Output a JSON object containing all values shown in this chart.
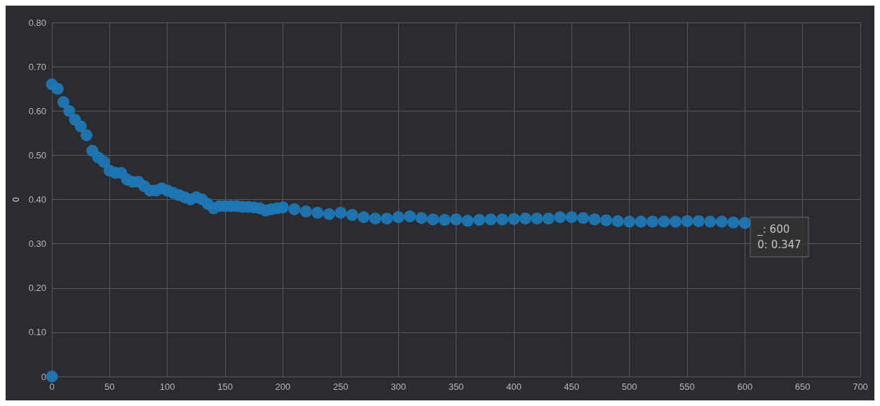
{
  "chart_data": {
    "type": "scatter",
    "ylabel": "0",
    "color": "#1f77b4",
    "marker": "circle",
    "grid": true,
    "x": [
      0,
      0,
      5,
      10,
      15,
      20,
      25,
      30,
      35,
      40,
      45,
      50,
      55,
      60,
      65,
      70,
      75,
      80,
      85,
      90,
      95,
      100,
      105,
      110,
      115,
      120,
      125,
      130,
      135,
      140,
      145,
      150,
      155,
      160,
      165,
      170,
      175,
      180,
      185,
      190,
      195,
      200,
      210,
      220,
      230,
      240,
      250,
      260,
      270,
      280,
      290,
      300,
      310,
      320,
      330,
      340,
      350,
      360,
      370,
      380,
      390,
      400,
      410,
      420,
      430,
      440,
      450,
      460,
      470,
      480,
      490,
      500,
      510,
      520,
      530,
      540,
      550,
      560,
      570,
      580,
      590,
      600
    ],
    "values": [
      0,
      0.66,
      0.65,
      0.62,
      0.6,
      0.58,
      0.565,
      0.545,
      0.51,
      0.495,
      0.485,
      0.465,
      0.46,
      0.46,
      0.445,
      0.44,
      0.44,
      0.43,
      0.42,
      0.42,
      0.425,
      0.42,
      0.415,
      0.41,
      0.405,
      0.4,
      0.405,
      0.4,
      0.39,
      0.38,
      0.385,
      0.385,
      0.385,
      0.385,
      0.383,
      0.383,
      0.382,
      0.38,
      0.375,
      0.378,
      0.38,
      0.382,
      0.378,
      0.373,
      0.37,
      0.367,
      0.37,
      0.365,
      0.36,
      0.357,
      0.357,
      0.36,
      0.362,
      0.358,
      0.355,
      0.354,
      0.355,
      0.352,
      0.354,
      0.355,
      0.355,
      0.356,
      0.357,
      0.357,
      0.357,
      0.36,
      0.36,
      0.358,
      0.355,
      0.353,
      0.351,
      0.35,
      0.35,
      0.35,
      0.35,
      0.35,
      0.351,
      0.351,
      0.35,
      0.35,
      0.348,
      0.347
    ],
    "xlim": [
      0,
      700
    ],
    "xticks": [
      0,
      50,
      100,
      150,
      200,
      250,
      300,
      350,
      400,
      450,
      500,
      550,
      600,
      650,
      700
    ],
    "ylim": [
      0,
      0.8
    ],
    "yticks": [
      0,
      {
        "value": 0.1,
        "label": "0.10"
      },
      {
        "value": 0.2,
        "label": "0.20"
      },
      {
        "value": 0.3,
        "label": "0.30"
      },
      {
        "value": 0.4,
        "label": "0.40"
      },
      {
        "value": 0.5,
        "label": "0.50"
      },
      {
        "value": 0.6,
        "label": "0.60"
      },
      {
        "value": 0.7,
        "label": "0.70"
      },
      {
        "value": 0.8,
        "label": "0.80"
      }
    ],
    "annotations": [
      {
        "text": "_: 600\n0: 0.347",
        "x": 600,
        "y": 0.347
      }
    ]
  }
}
